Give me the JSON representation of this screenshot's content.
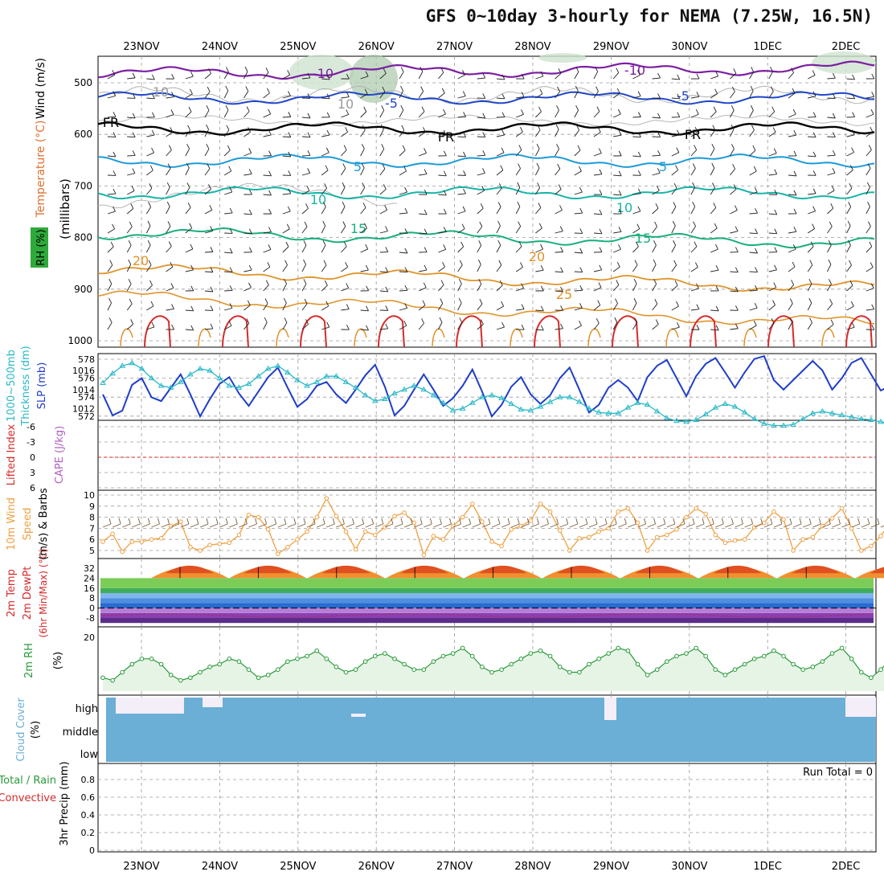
{
  "title": "GFS 0~10day 3-hourly for NEMA (7.25W, 16.5N)",
  "colors": {
    "frame": "#000000",
    "grid": "#9a9a9a",
    "purple": "#7b1fa2",
    "blue": "#1f47c8",
    "sky": "#1d9bd8",
    "teal": "#17b5a8",
    "green": "#18b07a",
    "orange": "#e0942a",
    "red": "#d62a2a",
    "slp": "#1f3ec8",
    "thickness": "#2ab8c8",
    "wind10": "#f0a040",
    "rh2": "#2a9a3a",
    "cloud": "#6baed6",
    "cloudClear": "#f3eef8"
  },
  "dates": [
    "23NOV",
    "24NOV",
    "25NOV",
    "26NOV",
    "27NOV",
    "28NOV",
    "29NOV",
    "30NOV",
    "1DEC",
    "2DEC"
  ],
  "panels": {
    "upper": {
      "ylabel": "(millibars)",
      "labels": [
        "Wind (m/s)",
        "Temperature (°C)",
        "RH (%)"
      ],
      "yticks": [
        500,
        600,
        700,
        800,
        900,
        1000
      ],
      "contour_labels": [
        "-10",
        "-10",
        "-5",
        "-5",
        "FR",
        "FR",
        "FR",
        "5",
        "5",
        "10",
        "10",
        "15",
        "15",
        "20",
        "20",
        "25",
        "10",
        "10"
      ]
    },
    "slp": {
      "labels": [
        "1000~500mb",
        "Thickness (dm)",
        "SLP (mb)"
      ],
      "left_ticks": [
        "578",
        "576",
        "574",
        "572"
      ],
      "right_ticks": [
        "1016",
        "1014",
        "1012"
      ]
    },
    "cape": {
      "labels": [
        "Lifted Index",
        "CAPE (J/kg)"
      ],
      "yticks": [
        "-6",
        "-3",
        "0",
        "3",
        "6"
      ]
    },
    "wind10": {
      "labels": [
        "10m Wind",
        "Speed",
        "(m/s) & Barbs"
      ],
      "yticks": [
        "10",
        "9",
        "8",
        "7",
        "6",
        "5"
      ]
    },
    "temp2m": {
      "labels": [
        "2m Temp",
        "2m DewPt",
        "(6hr Min/Max) (°C)"
      ],
      "yticks": [
        "32",
        "24",
        "16",
        "8",
        "0",
        "-8"
      ]
    },
    "rh2m": {
      "labels": [
        "2m RH",
        "(%)"
      ],
      "yticks": [
        "20"
      ]
    },
    "cloud": {
      "labels": [
        "Cloud Cover",
        "(%)"
      ],
      "levels": [
        "high",
        "middle",
        "low"
      ]
    },
    "precip": {
      "labels": [
        "Total / Rain",
        "Convective",
        "3hr Precip (mm)"
      ],
      "run_total": "Run Total = 0",
      "yticks": [
        "0.8",
        "0.6",
        "0.4",
        "0.2",
        "0"
      ]
    }
  },
  "chart_data": [
    {
      "type": "line",
      "title": "Sea Level Pressure (mb)",
      "ylim": [
        1011,
        1018
      ],
      "series": [
        {
          "name": "SLP",
          "values": [
            1013.5,
            1011.3,
            1011.8,
            1014.5,
            1015.2,
            1013.2,
            1012.8,
            1014.2,
            1015.6,
            1013.5,
            1011.2,
            1013.0,
            1014.6,
            1015.3,
            1013.6,
            1012.3,
            1013.8,
            1015.3,
            1016.3,
            1014.2,
            1012.2,
            1013.0,
            1014.4,
            1014.8,
            1013.5,
            1012.6,
            1014.0,
            1015.5,
            1016.6,
            1014.3,
            1011.3,
            1012.3,
            1014.0,
            1015.6,
            1014.0,
            1012.3,
            1013.1,
            1014.4,
            1016.1,
            1013.8,
            1011.2,
            1012.4,
            1014.3,
            1015.3,
            1013.5,
            1012.5,
            1013.4,
            1015.2,
            1016.3,
            1014.0,
            1011.6,
            1012.4,
            1014.2,
            1015.0,
            1014.2,
            1012.8,
            1015.3,
            1016.5,
            1017.1,
            1015.2,
            1013.3,
            1015.4,
            1016.7,
            1017.3,
            1015.8,
            1014.2,
            1015.8,
            1017.2,
            1017.5,
            1015.0,
            1014.0,
            1015.0,
            1016.0,
            1017.0,
            1016.0,
            1014.0,
            1015.2,
            1016.8,
            1017.3,
            1015.6,
            1013.9,
            1014.4
          ]
        }
      ]
    },
    {
      "type": "line",
      "title": "1000~500mb Thickness (dm)",
      "ylim": [
        571,
        579
      ],
      "series": [
        {
          "name": "Thickness",
          "values": [
            575.5,
            576.5,
            577.3,
            577.6,
            577.0,
            576.0,
            575.2,
            575.0,
            575.6,
            576.4,
            577.0,
            576.8,
            576.0,
            575.2,
            575.0,
            575.4,
            576.2,
            577.0,
            577.3,
            576.6,
            575.8,
            575.2,
            575.6,
            576.2,
            576.2,
            575.6,
            575.0,
            574.2,
            573.6,
            573.8,
            574.4,
            574.8,
            575.2,
            574.8,
            574.2,
            573.4,
            572.6,
            572.8,
            573.4,
            574.0,
            574.2,
            573.9,
            573.3,
            572.7,
            572.6,
            573.0,
            573.5,
            574.0,
            574.0,
            573.5,
            572.8,
            572.4,
            572.3,
            572.3,
            572.9,
            573.4,
            573.2,
            572.5,
            571.8,
            571.5,
            571.4,
            571.6,
            572.2,
            572.9,
            573.3,
            573.0,
            572.4,
            571.7,
            571.2,
            571.0,
            571.0,
            571.1,
            571.7,
            572.3,
            572.5,
            572.3,
            572.1,
            571.9,
            571.7,
            571.6,
            571.4,
            571.2
          ]
        }
      ]
    },
    {
      "type": "line",
      "title": "10m Wind Speed (m/s)",
      "ylim": [
        4.5,
        10
      ],
      "series": [
        {
          "name": "Wind10",
          "values": [
            5.8,
            6.5,
            4.9,
            5.8,
            5.8,
            6.0,
            6.1,
            7.2,
            7.6,
            5.3,
            5.0,
            5.5,
            5.6,
            5.7,
            6.4,
            8.2,
            8.0,
            6.9,
            4.7,
            5.3,
            6.0,
            6.7,
            8.0,
            9.7,
            8.1,
            6.7,
            5.1,
            6.7,
            6.4,
            7.1,
            8.1,
            8.4,
            7.5,
            4.6,
            6.3,
            6.0,
            7.2,
            8.0,
            9.2,
            7.6,
            5.8,
            5.4,
            6.9,
            7.2,
            7.7,
            9.2,
            8.5,
            6.8,
            5.0,
            6.1,
            6.2,
            6.7,
            7.0,
            8.5,
            8.8,
            7.5,
            5.0,
            6.2,
            6.4,
            6.9,
            8.0,
            8.8,
            8.3,
            6.4,
            5.7,
            5.9,
            6.0,
            7.1,
            7.5,
            8.5,
            7.8,
            5.0,
            6.0,
            6.2,
            7.2,
            7.9,
            8.8,
            7.0,
            5.0,
            5.4,
            6.3,
            7.6
          ]
        }
      ]
    },
    {
      "type": "line",
      "title": "2m RH (%)",
      "ylim": [
        0,
        25
      ],
      "series": [
        {
          "name": "RH2m",
          "values": [
            5,
            4,
            7,
            10,
            12,
            12,
            10,
            6,
            4,
            5,
            7,
            9,
            10,
            12,
            11,
            8,
            5,
            6,
            8,
            11,
            12,
            13,
            15,
            12,
            9,
            7,
            8,
            11,
            13,
            14,
            12,
            10,
            8,
            8,
            11,
            13,
            14,
            16,
            13,
            9,
            7,
            8,
            10,
            12,
            14,
            15,
            13,
            9,
            7,
            7,
            10,
            12,
            14,
            16,
            15,
            10,
            6,
            8,
            11,
            13,
            14,
            16,
            13,
            8,
            6,
            8,
            10,
            12,
            13,
            15,
            13,
            10,
            8,
            9,
            11,
            14,
            16,
            12,
            7,
            5,
            8,
            12,
            15,
            18
          ]
        }
      ]
    }
  ]
}
